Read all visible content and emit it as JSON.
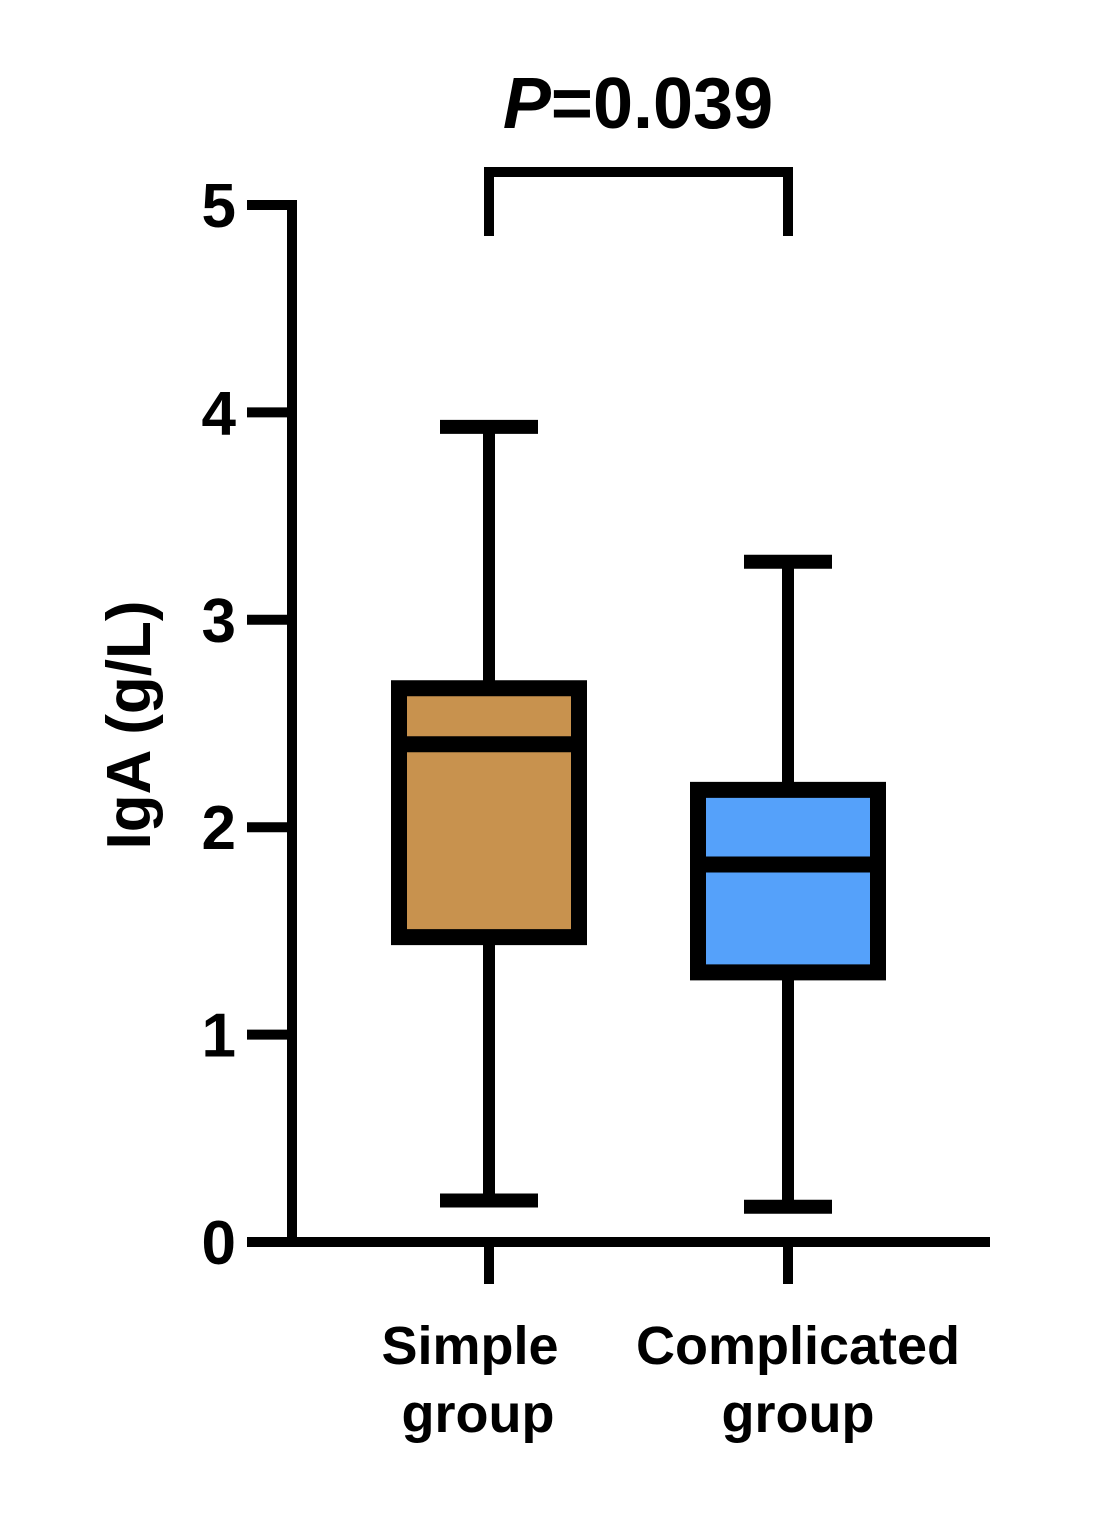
{
  "chart_data": {
    "type": "boxplot",
    "title": "",
    "xlabel": "",
    "ylabel": "IgA (g/L)",
    "ylim": [
      0,
      5
    ],
    "yticks": [
      "0",
      "1",
      "2",
      "3",
      "4",
      "5"
    ],
    "grid": false,
    "legend": "none",
    "categories": [
      {
        "line1": "Simple",
        "line2": "group"
      },
      {
        "line1": "Complicated",
        "line2": "group"
      }
    ],
    "boxes": [
      {
        "min": 0.2,
        "q1": 1.47,
        "median": 2.4,
        "q3": 2.67,
        "max": 3.93,
        "color": "#C8924E"
      },
      {
        "min": 0.17,
        "q1": 1.3,
        "median": 1.82,
        "q3": 2.18,
        "max": 3.28,
        "color": "#55A1FA"
      }
    ],
    "annotation": {
      "italic": "P",
      "text": "=0.039"
    }
  }
}
